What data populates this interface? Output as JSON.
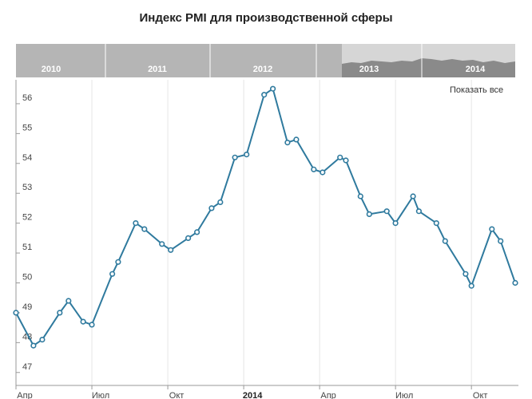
{
  "chart_data": {
    "type": "line",
    "title": "Индекс PMI для производственной сферы",
    "ylim": [
      46.7,
      56.8
    ],
    "y_ticks": [
      47,
      48,
      49,
      50,
      51,
      52,
      53,
      54,
      55,
      56
    ],
    "x_ticks": [
      {
        "label": "Апр",
        "x": 0,
        "bold": false
      },
      {
        "label": "Июл",
        "x": 13,
        "bold": false
      },
      {
        "label": "Окт",
        "x": 26,
        "bold": false
      },
      {
        "label": "2014",
        "x": 39,
        "bold": true
      },
      {
        "label": "Апр",
        "x": 52,
        "bold": false
      },
      {
        "label": "Июл",
        "x": 65,
        "bold": false
      },
      {
        "label": "Окт",
        "x": 78,
        "bold": false
      }
    ],
    "x_range": [
      0,
      85.5
    ],
    "series": [
      {
        "color": "#2f7a9e",
        "points": [
          [
            0,
            49.0
          ],
          [
            3,
            47.9
          ],
          [
            4.5,
            48.1
          ],
          [
            7.5,
            49.0
          ],
          [
            9,
            49.4
          ],
          [
            11.5,
            48.7
          ],
          [
            13,
            48.6
          ],
          [
            16.5,
            50.3
          ],
          [
            17.5,
            50.7
          ],
          [
            20.5,
            52.0
          ],
          [
            22,
            51.8
          ],
          [
            25,
            51.3
          ],
          [
            26.5,
            51.1
          ],
          [
            29.5,
            51.5
          ],
          [
            31,
            51.7
          ],
          [
            33.5,
            52.5
          ],
          [
            35,
            52.7
          ],
          [
            37.5,
            54.2
          ],
          [
            39.5,
            54.3
          ],
          [
            42.5,
            56.3
          ],
          [
            44,
            56.5
          ],
          [
            46.5,
            54.7
          ],
          [
            48,
            54.8
          ],
          [
            51,
            53.8
          ],
          [
            52.5,
            53.7
          ],
          [
            55.5,
            54.2
          ],
          [
            56.5,
            54.1
          ],
          [
            59,
            52.9
          ],
          [
            60.5,
            52.3
          ],
          [
            63.5,
            52.4
          ],
          [
            65,
            52.0
          ],
          [
            68,
            52.9
          ],
          [
            69,
            52.4
          ],
          [
            72,
            52.0
          ],
          [
            73.5,
            51.4
          ],
          [
            77,
            50.3
          ],
          [
            78,
            49.9
          ],
          [
            81.5,
            51.8
          ],
          [
            83,
            51.4
          ],
          [
            85.5,
            50.0
          ]
        ]
      }
    ]
  },
  "navigator": {
    "years": [
      "2010",
      "2011",
      "2012",
      "2013",
      "2014"
    ]
  },
  "controls": {
    "show_all_label": "Показать все"
  },
  "colors": {
    "line": "#2f7a9e",
    "navigator_bg": "#b5b5b5",
    "navigator_selected": "#d6d6d6",
    "navigator_area": "#8a8a8a"
  }
}
